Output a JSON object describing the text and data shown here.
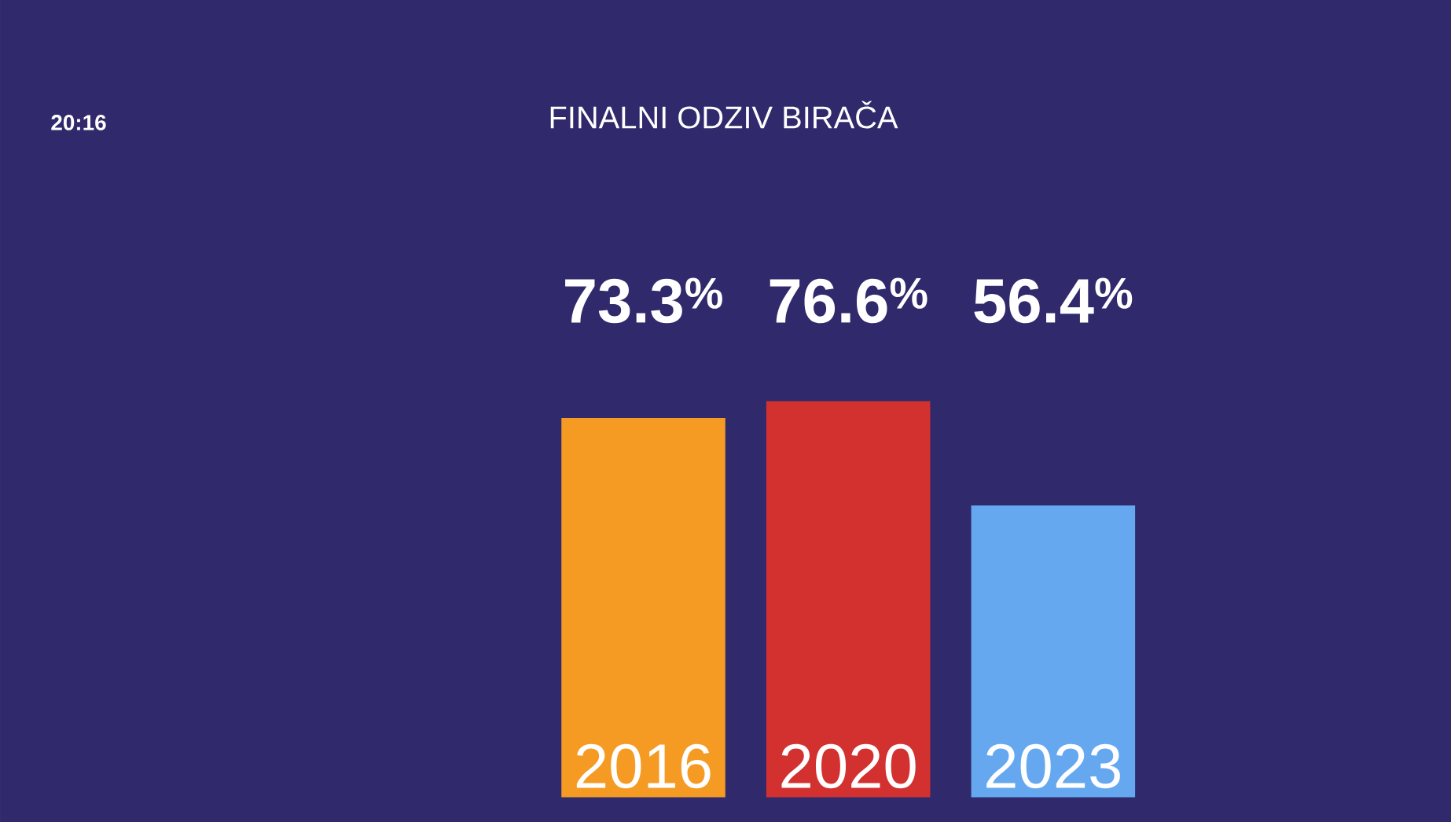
{
  "chart_data": {
    "type": "bar",
    "title": "FINALNI ODZIV BIRAČA",
    "categories": [
      "2016",
      "2020",
      "2023"
    ],
    "values": [
      73.3,
      76.6,
      56.4
    ],
    "colors": [
      "#f59b23",
      "#d3312f",
      "#65a8ef"
    ],
    "value_labels": [
      "73.3$^{%}$",
      "76.6$^{%}$",
      "56.4$^{%}$"
    ],
    "annotations": [
      "20:16"
    ]
  }
}
